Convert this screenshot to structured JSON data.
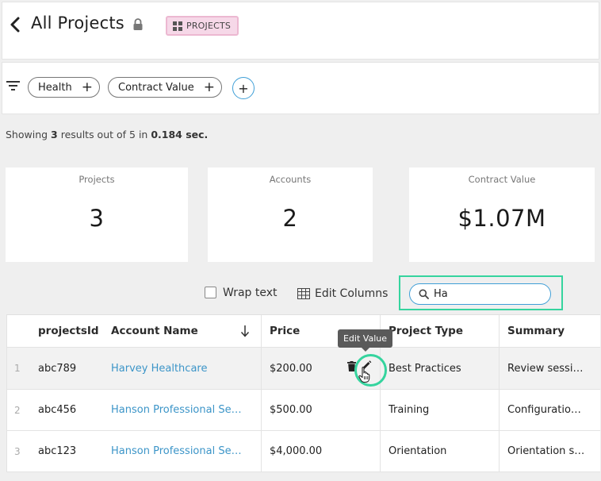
{
  "header": {
    "title": "All Projects",
    "tag_label": "PROJECTS"
  },
  "filters": {
    "chips": [
      {
        "label": "Health"
      },
      {
        "label": "Contract Value"
      }
    ],
    "add_label": "+"
  },
  "summary": {
    "prefix": "Showing ",
    "count": "3",
    "middle": " results out of 5 in ",
    "time": "0.184 sec."
  },
  "cards": [
    {
      "label": "Projects",
      "value": "3"
    },
    {
      "label": "Accounts",
      "value": "2"
    },
    {
      "label": "Contract Value",
      "value": "$1.07M"
    }
  ],
  "toolbar": {
    "wrap_text_label": "Wrap text",
    "edit_columns_label": "Edit Columns",
    "search_value": "Ha"
  },
  "table": {
    "headers": [
      "projectsId",
      "Account Name",
      "Price",
      "Project Type",
      "Summary"
    ],
    "rows": [
      {
        "num": "1",
        "id": "abc789",
        "account": "Harvey Healthcare",
        "price": "$200.00",
        "type": "Best Practices",
        "summary": "Review sessi…"
      },
      {
        "num": "2",
        "id": "abc456",
        "account": "Hanson Professional Se…",
        "price": "$500.00",
        "type": "Training",
        "summary": "Configuratio…"
      },
      {
        "num": "3",
        "id": "abc123",
        "account": "Hanson Professional Se…",
        "price": "$4,000.00",
        "type": "Orientation",
        "summary": "Orientation s…"
      }
    ]
  },
  "tooltip": {
    "label": "Edit Value"
  },
  "colors": {
    "accent_green": "#35d49e",
    "link_blue": "#3c95c8",
    "tag_pink": "#f6d8e8"
  },
  "icons": [
    "back-icon",
    "lock-icon",
    "grid-icon",
    "filter-icon",
    "plus-icon",
    "search-icon",
    "table-icon",
    "sort-down-icon",
    "trash-icon",
    "pencil-icon",
    "hand-cursor-icon"
  ]
}
